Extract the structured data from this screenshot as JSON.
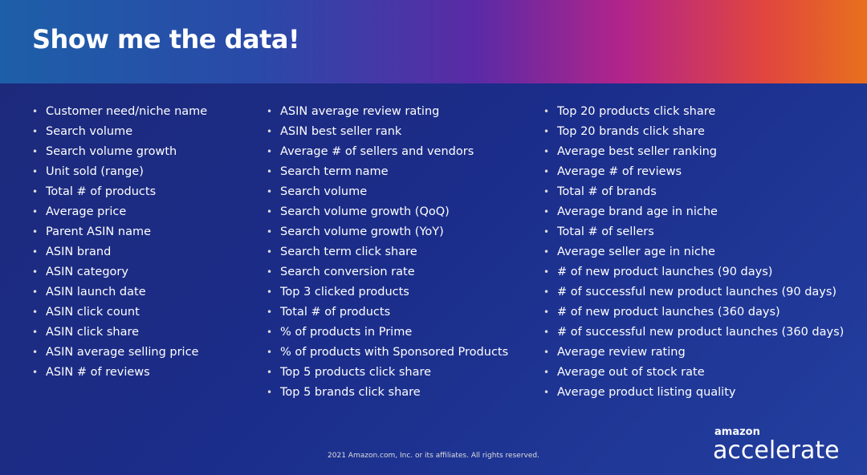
{
  "header": {
    "title": "Show me the data!"
  },
  "columns": [
    [
      "Customer need/niche name",
      "Search volume",
      "Search volume growth",
      "Unit sold (range)",
      "Total # of products",
      "Average price",
      "Parent ASIN name",
      "ASIN brand",
      "ASIN category",
      "ASIN launch date",
      "ASIN click count",
      "ASIN click share",
      "ASIN average selling price",
      "ASIN # of reviews"
    ],
    [
      "ASIN average review rating",
      "ASIN best seller rank",
      "Average # of sellers and vendors",
      "Search term name",
      "Search volume",
      "Search volume growth (QoQ)",
      "Search volume growth (YoY)",
      "Search term click share",
      "Search conversion rate",
      "Top 3 clicked products",
      "Total # of products",
      "% of products in Prime",
      "% of products with Sponsored Products",
      "Top 5 products click share",
      "Top 5 brands click share"
    ],
    [
      "Top 20 products click share",
      "Top 20 brands click share",
      "Average best seller ranking",
      "Average # of reviews",
      "Total # of brands",
      "Average brand age in niche",
      "Total # of sellers",
      "Average seller age in niche",
      "# of new product launches (90 days)",
      "# of successful new product launches (90 days)",
      "# of new product launches (360 days)",
      "# of successful new product launches (360 days)",
      "Average review rating",
      "Average out of stock rate",
      "Average product listing quality"
    ]
  ],
  "footer": {
    "copyright": "2021 Amazon.com, Inc. or its affiliates. All rights reserved.",
    "brand_small": "amazon",
    "brand": "accelerate"
  }
}
